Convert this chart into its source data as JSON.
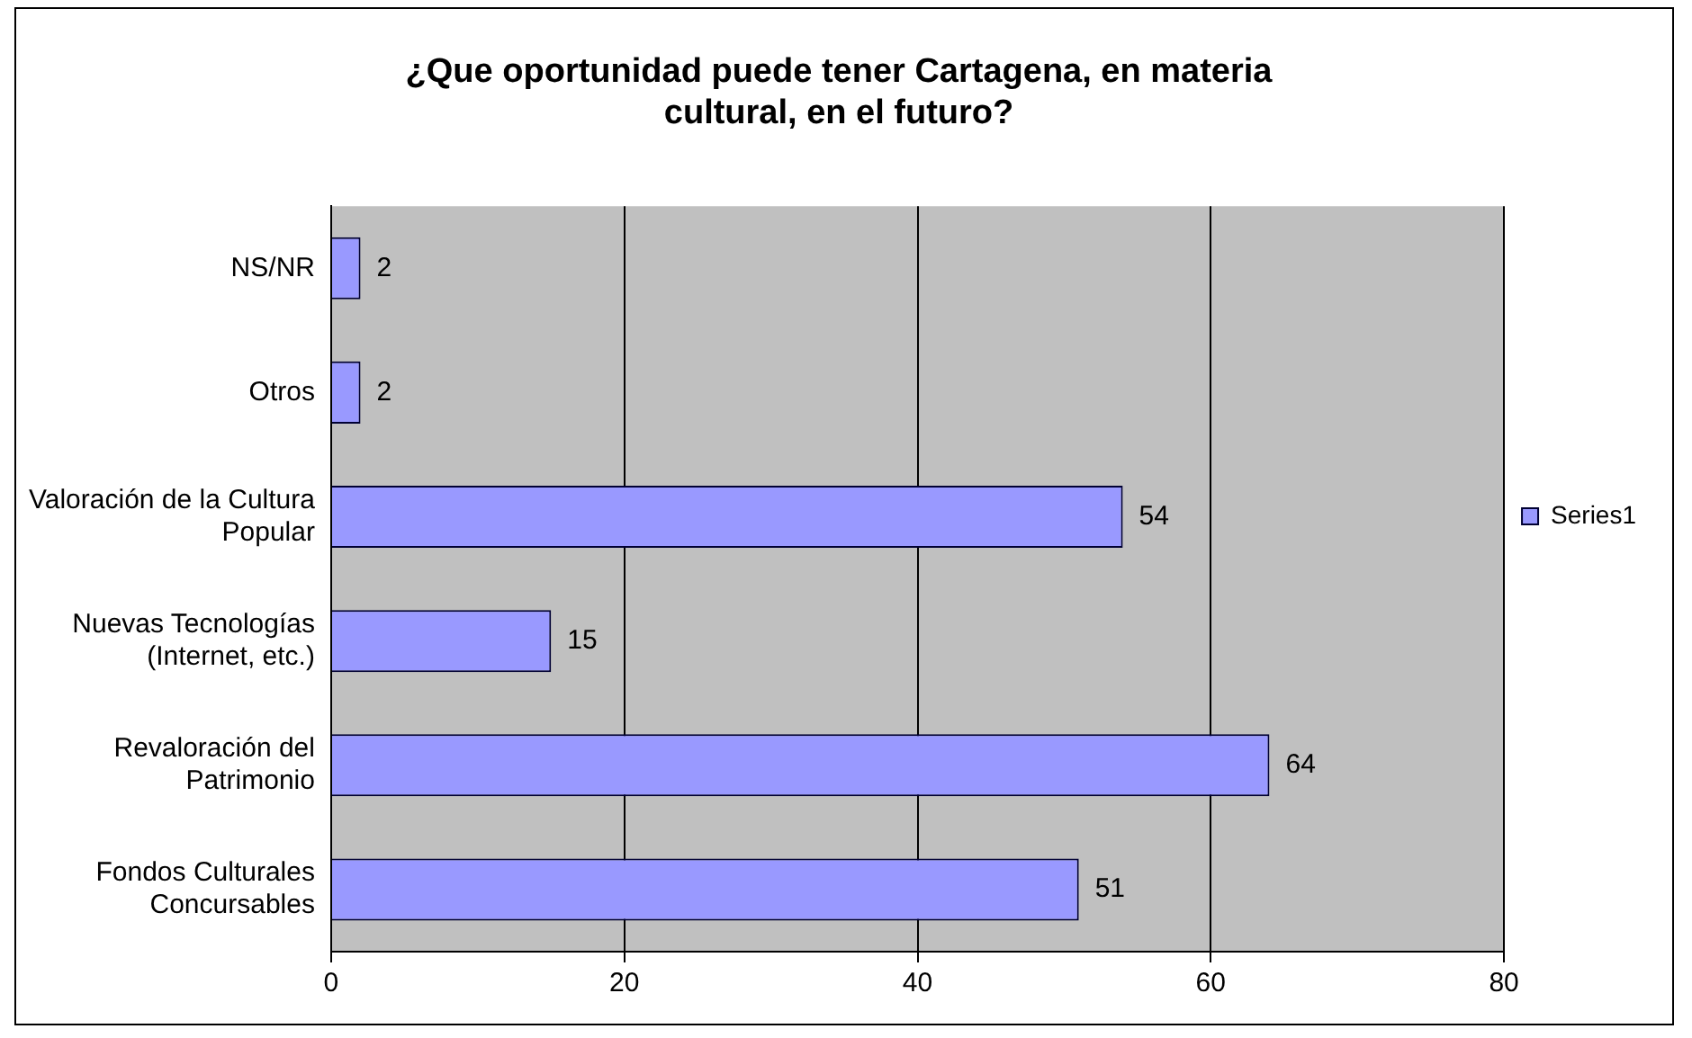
{
  "chart_data": {
    "type": "bar",
    "orientation": "horizontal",
    "title": "¿Que oportunidad puede tener Cartagena, en materia cultural, en el futuro?",
    "categories": [
      "NS/NR",
      "Otros",
      "Valoración de la Cultura Popular",
      "Nuevas Tecnologías (Internet, etc.)",
      "Revaloración del Patrimonio",
      "Fondos Culturales Concursables"
    ],
    "series": [
      {
        "name": "Series1",
        "color": "#9999ff",
        "values": [
          2,
          2,
          54,
          15,
          64,
          51
        ]
      }
    ],
    "xlim": [
      0,
      80
    ],
    "xticks": [
      0,
      20,
      40,
      60,
      80
    ],
    "grid": "x",
    "legend": "right",
    "data_labels": true
  }
}
